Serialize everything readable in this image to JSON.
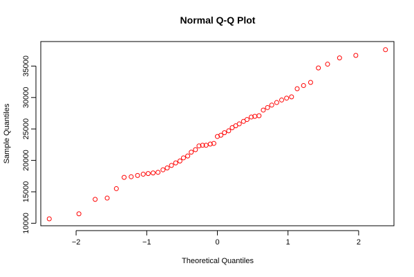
{
  "chart_data": {
    "type": "scatter",
    "title": "Normal Q-Q Plot",
    "xlabel": "Theoretical Quantiles",
    "ylabel": "Sample Quantiles",
    "xlim": [
      -2.5,
      2.5
    ],
    "ylim": [
      9600,
      38900
    ],
    "xticks": [
      -2,
      -1,
      0,
      1,
      2
    ],
    "xtick_labels": [
      "−2",
      "−1",
      "0",
      "1",
      "2"
    ],
    "yticks": [
      10000,
      15000,
      20000,
      25000,
      30000,
      35000
    ],
    "ytick_labels": [
      "10000",
      "15000",
      "20000",
      "25000",
      "30000",
      "35000"
    ],
    "grid": false,
    "marker": "open-circle",
    "point_color": "#ff0000",
    "points": [
      {
        "x": -2.38,
        "y": 10700
      },
      {
        "x": -1.96,
        "y": 11500
      },
      {
        "x": -1.73,
        "y": 13800
      },
      {
        "x": -1.56,
        "y": 14000
      },
      {
        "x": -1.43,
        "y": 15500
      },
      {
        "x": -1.32,
        "y": 17300
      },
      {
        "x": -1.22,
        "y": 17400
      },
      {
        "x": -1.13,
        "y": 17600
      },
      {
        "x": -1.05,
        "y": 17800
      },
      {
        "x": -0.98,
        "y": 17900
      },
      {
        "x": -0.91,
        "y": 18000
      },
      {
        "x": -0.84,
        "y": 18100
      },
      {
        "x": -0.77,
        "y": 18500
      },
      {
        "x": -0.71,
        "y": 18800
      },
      {
        "x": -0.65,
        "y": 19200
      },
      {
        "x": -0.59,
        "y": 19600
      },
      {
        "x": -0.53,
        "y": 19900
      },
      {
        "x": -0.48,
        "y": 20400
      },
      {
        "x": -0.42,
        "y": 20700
      },
      {
        "x": -0.37,
        "y": 21300
      },
      {
        "x": -0.31,
        "y": 21700
      },
      {
        "x": -0.26,
        "y": 22300
      },
      {
        "x": -0.21,
        "y": 22400
      },
      {
        "x": -0.16,
        "y": 22400
      },
      {
        "x": -0.1,
        "y": 22600
      },
      {
        "x": -0.05,
        "y": 22700
      },
      {
        "x": 0.0,
        "y": 23800
      },
      {
        "x": 0.05,
        "y": 24000
      },
      {
        "x": 0.1,
        "y": 24400
      },
      {
        "x": 0.16,
        "y": 24700
      },
      {
        "x": 0.21,
        "y": 25200
      },
      {
        "x": 0.26,
        "y": 25500
      },
      {
        "x": 0.31,
        "y": 25800
      },
      {
        "x": 0.37,
        "y": 26200
      },
      {
        "x": 0.42,
        "y": 26500
      },
      {
        "x": 0.48,
        "y": 26900
      },
      {
        "x": 0.53,
        "y": 27000
      },
      {
        "x": 0.59,
        "y": 27100
      },
      {
        "x": 0.65,
        "y": 28000
      },
      {
        "x": 0.71,
        "y": 28400
      },
      {
        "x": 0.77,
        "y": 28800
      },
      {
        "x": 0.84,
        "y": 29200
      },
      {
        "x": 0.91,
        "y": 29600
      },
      {
        "x": 0.98,
        "y": 29900
      },
      {
        "x": 1.05,
        "y": 30100
      },
      {
        "x": 1.13,
        "y": 31400
      },
      {
        "x": 1.22,
        "y": 31900
      },
      {
        "x": 1.32,
        "y": 32400
      },
      {
        "x": 1.43,
        "y": 34700
      },
      {
        "x": 1.56,
        "y": 35300
      },
      {
        "x": 1.73,
        "y": 36300
      },
      {
        "x": 1.96,
        "y": 36700
      },
      {
        "x": 2.38,
        "y": 37600
      }
    ]
  }
}
